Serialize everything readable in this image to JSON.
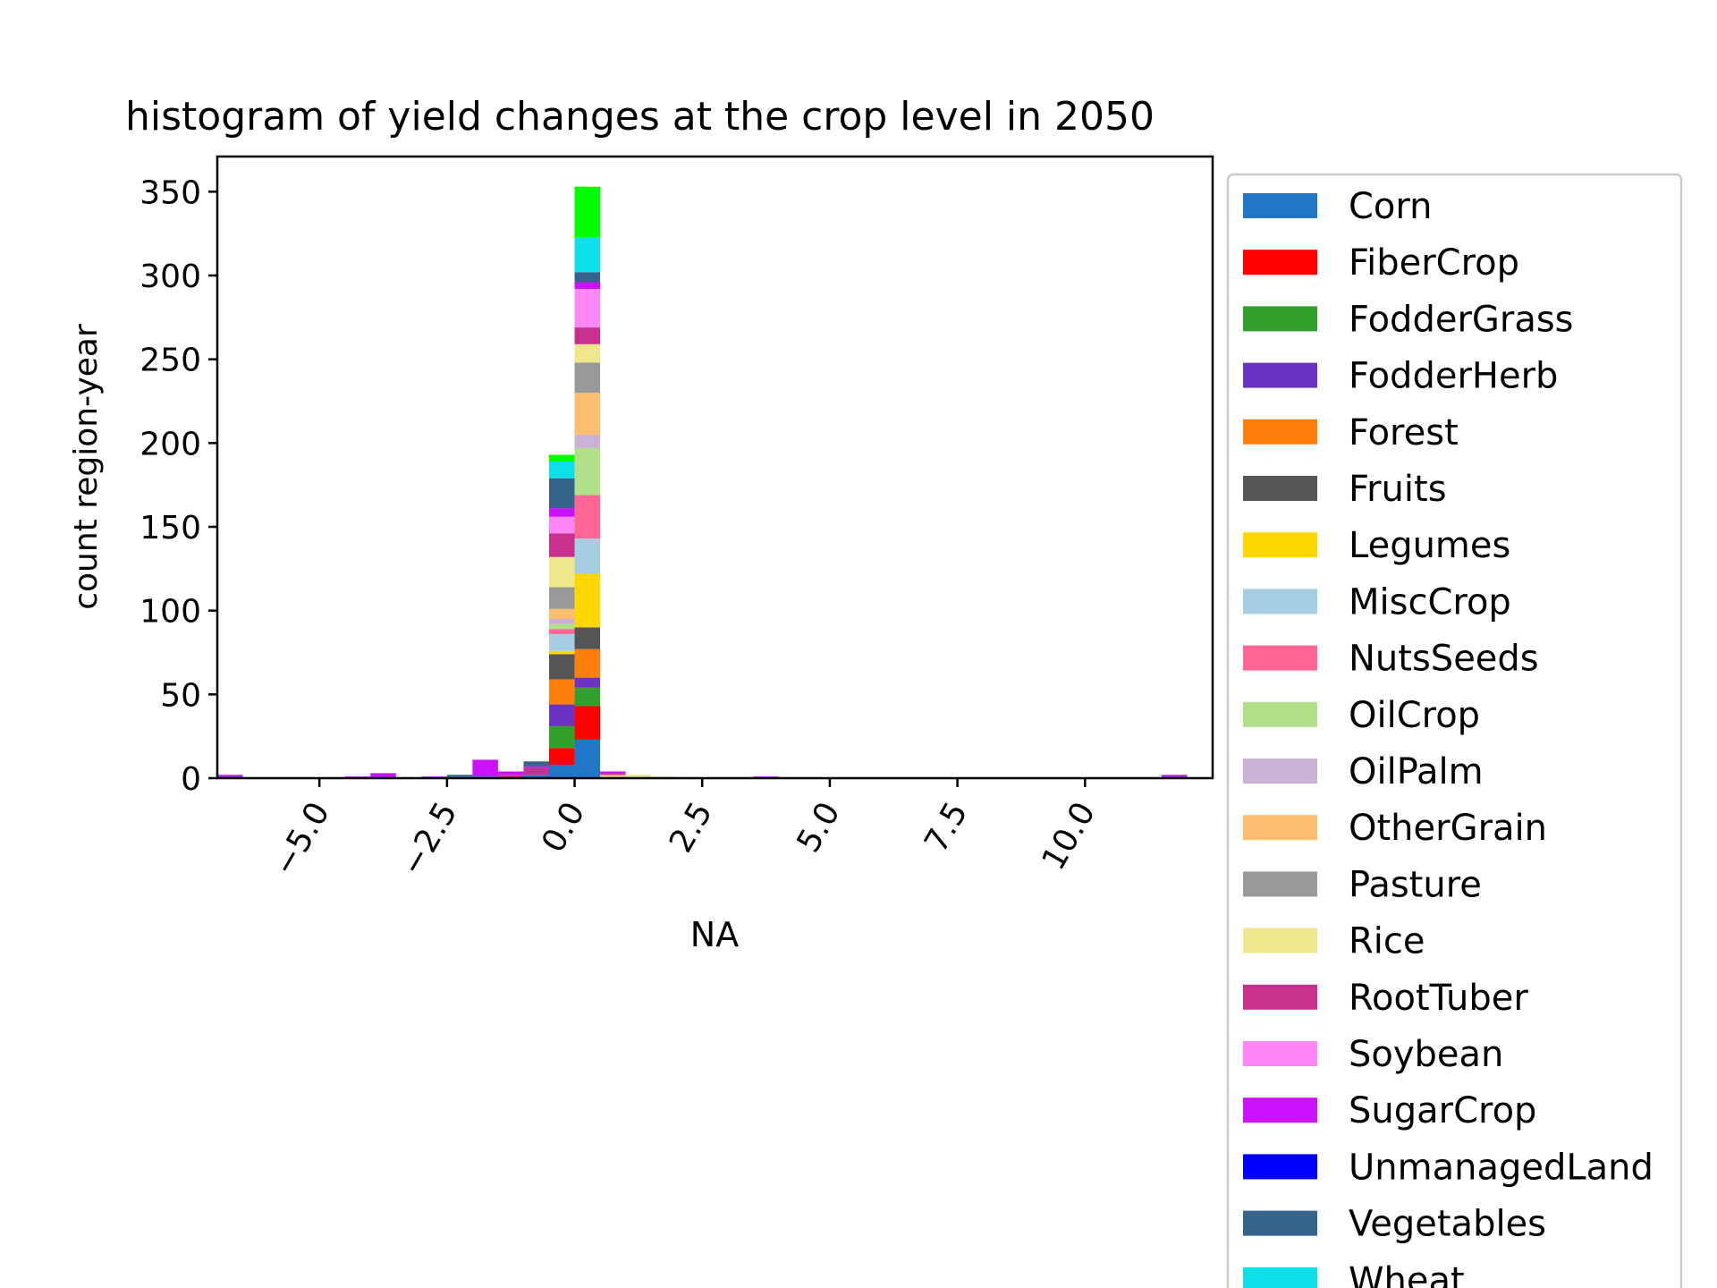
{
  "chart_data": {
    "type": "bar",
    "stacked": true,
    "title": "histogram of yield changes at the crop level in 2050",
    "xlabel": "NA",
    "ylabel": "count region-year",
    "xlim": [
      -7.0,
      12.5
    ],
    "ylim": [
      0,
      371
    ],
    "xticks": [
      -5.0,
      -2.5,
      0.0,
      2.5,
      5.0,
      7.5,
      10.0
    ],
    "xtick_labels": [
      "−5.0",
      "−2.5",
      "0.0",
      "2.5",
      "5.0",
      "7.5",
      "10.0"
    ],
    "yticks": [
      0,
      50,
      100,
      150,
      200,
      250,
      300,
      350
    ],
    "ytick_labels": [
      "0",
      "50",
      "100",
      "150",
      "200",
      "250",
      "300",
      "350"
    ],
    "grid": false,
    "legend_position": "right, outside",
    "bin_width": 0.5,
    "bins": [
      {
        "x0": -7.0,
        "x1": -6.5
      },
      {
        "x0": -4.5,
        "x1": -4.0
      },
      {
        "x0": -4.0,
        "x1": -3.5
      },
      {
        "x0": -3.0,
        "x1": -2.5
      },
      {
        "x0": -2.5,
        "x1": -2.0
      },
      {
        "x0": -2.0,
        "x1": -1.5
      },
      {
        "x0": -1.5,
        "x1": -1.0
      },
      {
        "x0": -1.0,
        "x1": -0.5
      },
      {
        "x0": -0.5,
        "x1": 0.0
      },
      {
        "x0": 0.0,
        "x1": 0.5
      },
      {
        "x0": 0.5,
        "x1": 1.0
      },
      {
        "x0": 1.0,
        "x1": 1.5
      },
      {
        "x0": 1.5,
        "x1": 2.0
      },
      {
        "x0": 3.5,
        "x1": 4.0
      },
      {
        "x0": 11.5,
        "x1": 12.0
      }
    ],
    "series": [
      {
        "name": "Corn",
        "color": "#2176c8",
        "values": [
          0,
          0,
          0,
          0,
          1,
          1,
          0,
          2,
          8,
          23,
          0,
          0,
          0,
          0,
          0
        ]
      },
      {
        "name": "FiberCrop",
        "color": "#ff0000",
        "values": [
          0,
          0,
          0,
          0,
          0,
          0,
          0,
          0,
          10,
          20,
          0,
          0,
          0,
          0,
          0
        ]
      },
      {
        "name": "FodderGrass",
        "color": "#33a02c",
        "values": [
          0,
          0,
          0,
          0,
          0,
          0,
          0,
          0,
          13,
          11,
          0,
          0,
          0,
          0,
          0
        ]
      },
      {
        "name": "FodderHerb",
        "color": "#6a33c2",
        "values": [
          1,
          0,
          0,
          0,
          0,
          0,
          0,
          0,
          13,
          6,
          0,
          0,
          0,
          0,
          1
        ]
      },
      {
        "name": "Forest",
        "color": "#ff7f0e",
        "values": [
          0,
          0,
          0,
          0,
          0,
          0,
          0,
          0,
          15,
          17,
          0,
          0,
          0,
          0,
          0
        ]
      },
      {
        "name": "Fruits",
        "color": "#555555",
        "values": [
          0,
          0,
          0,
          0,
          0,
          0,
          0,
          0,
          15,
          13,
          0,
          0,
          0,
          0,
          0
        ]
      },
      {
        "name": "Legumes",
        "color": "#ffd700",
        "values": [
          0,
          0,
          0,
          0,
          0,
          0,
          0,
          0,
          2,
          32,
          0,
          0,
          0,
          0,
          0
        ]
      },
      {
        "name": "MiscCrop",
        "color": "#a6cee3",
        "values": [
          0,
          0,
          0,
          0,
          0,
          0,
          0,
          0,
          10,
          21,
          0,
          0,
          0,
          0,
          0
        ]
      },
      {
        "name": "NutsSeeds",
        "color": "#ff6693",
        "values": [
          0,
          0,
          0,
          0,
          0,
          0,
          0,
          0,
          3,
          26,
          0,
          0,
          0,
          0,
          0
        ]
      },
      {
        "name": "OilCrop",
        "color": "#b2df8a",
        "values": [
          0,
          0,
          0,
          0,
          0,
          0,
          0,
          0,
          3,
          28,
          1,
          1,
          0,
          0,
          0
        ]
      },
      {
        "name": "OilPalm",
        "color": "#cab2d6",
        "values": [
          0,
          0,
          0,
          0,
          0,
          0,
          0,
          0,
          3,
          8,
          0,
          0,
          0,
          0,
          0
        ]
      },
      {
        "name": "OtherGrain",
        "color": "#fdbf6f",
        "values": [
          0,
          0,
          0,
          0,
          0,
          0,
          0,
          0,
          6,
          25,
          1,
          0,
          0,
          0,
          0
        ]
      },
      {
        "name": "Pasture",
        "color": "#999999",
        "values": [
          0,
          0,
          0,
          0,
          0,
          0,
          0,
          0,
          13,
          18,
          0,
          0,
          0,
          0,
          0
        ]
      },
      {
        "name": "Rice",
        "color": "#f0e68c",
        "values": [
          0,
          0,
          0,
          0,
          0,
          0,
          0,
          0,
          18,
          11,
          0,
          1,
          1,
          0,
          0
        ]
      },
      {
        "name": "RootTuber",
        "color": "#c7308c",
        "values": [
          0,
          0,
          0,
          0,
          0,
          0,
          2,
          4,
          14,
          10,
          1,
          0,
          0,
          0,
          0
        ]
      },
      {
        "name": "Soybean",
        "color": "#ff88f6",
        "values": [
          0,
          0,
          0,
          0,
          0,
          0,
          0,
          0,
          10,
          23,
          0,
          0,
          0,
          0,
          0
        ]
      },
      {
        "name": "SugarCrop",
        "color": "#cc11ff",
        "values": [
          1,
          1,
          3,
          1,
          0,
          10,
          2,
          1,
          5,
          4,
          1,
          0,
          0,
          1,
          1
        ]
      },
      {
        "name": "UnmanagedLand",
        "color": "#0000ff",
        "values": [
          0,
          0,
          0,
          0,
          0,
          0,
          0,
          0,
          0,
          0,
          0,
          0,
          0,
          0,
          0
        ]
      },
      {
        "name": "Vegetables",
        "color": "#35638c",
        "values": [
          0,
          0,
          0,
          0,
          1,
          0,
          0,
          3,
          18,
          6,
          0,
          0,
          0,
          0,
          0
        ]
      },
      {
        "name": "Wheat",
        "color": "#0de0e8",
        "values": [
          0,
          0,
          0,
          0,
          0,
          0,
          0,
          0,
          10,
          21,
          0,
          0,
          0,
          0,
          0
        ]
      },
      {
        "name": "",
        "color": "#00ff00",
        "values": [
          0,
          0,
          0,
          0,
          0,
          0,
          0,
          0,
          4,
          30,
          0,
          0,
          0,
          0,
          0
        ]
      }
    ]
  }
}
